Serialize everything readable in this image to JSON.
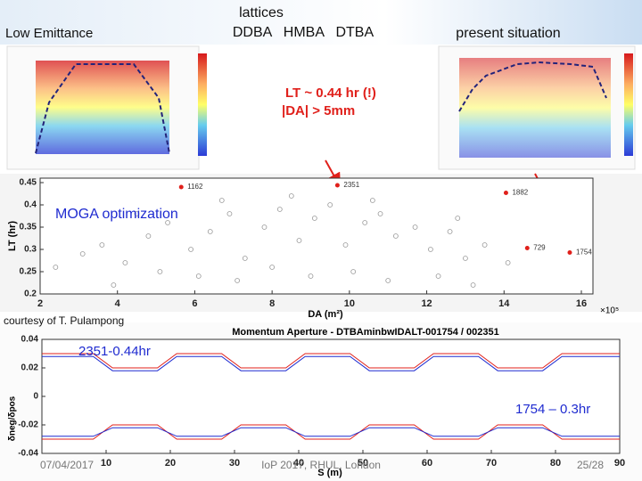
{
  "header": {
    "left": "Low Emittance",
    "center_line1": "lattices",
    "center_line2": "DDBA   HMBA   DTBA",
    "right": "present situation"
  },
  "callout": {
    "line1": "LT ~ 0.44 hr (!)",
    "line2": "|DA| > 5mm"
  },
  "credit": "courtesy of T. Pulampong",
  "footer": {
    "date": "07/04/2017",
    "venue": "IoP 2017, RHUL, London",
    "page": "25/28"
  },
  "chart_data": [
    {
      "type": "scatter",
      "annotation": "MOGA optimization",
      "xlabel": "DA (m²)",
      "x_multiplier": "×10⁵",
      "ylabel": "LT (hr)",
      "xlim": [
        2,
        16.3
      ],
      "ylim": [
        0.2,
        0.46
      ],
      "xticks": [
        2,
        4,
        6,
        8,
        10,
        12,
        14,
        16
      ],
      "yticks": [
        0.2,
        0.25,
        0.3,
        0.35,
        0.4,
        0.45
      ],
      "series": [
        {
          "color": "#9a9a9a",
          "x": [
            2.4,
            3.1,
            3.6,
            4.2,
            4.8,
            5.3,
            5.9,
            6.4,
            6.9,
            7.3,
            7.8,
            8.2,
            8.7,
            9.1,
            9.5,
            9.9,
            10.4,
            10.8,
            11.2,
            11.7,
            12.1,
            12.6,
            13.0,
            13.5,
            14.1,
            3.9,
            5.1,
            6.1,
            7.1,
            8.0,
            9.0,
            10.1,
            11.0,
            12.3,
            13.2,
            4.5,
            6.7,
            8.5,
            10.6,
            12.8
          ],
          "values": [
            0.26,
            0.29,
            0.31,
            0.27,
            0.33,
            0.36,
            0.3,
            0.34,
            0.38,
            0.28,
            0.35,
            0.39,
            0.32,
            0.37,
            0.4,
            0.31,
            0.36,
            0.38,
            0.33,
            0.35,
            0.3,
            0.34,
            0.28,
            0.31,
            0.27,
            0.22,
            0.25,
            0.24,
            0.23,
            0.26,
            0.24,
            0.25,
            0.23,
            0.24,
            0.22,
            0.38,
            0.41,
            0.42,
            0.41,
            0.37
          ]
        },
        {
          "color": "#e0201b",
          "x": [
            5.65,
            9.69,
            14.05,
            14.6,
            15.7
          ],
          "values": [
            0.44,
            0.444,
            0.427,
            0.303,
            0.293
          ],
          "labels": [
            "1162",
            "2351",
            "1882",
            "729",
            "1754"
          ]
        }
      ]
    },
    {
      "type": "line",
      "title": "Momentum Aperture - DTBAminbwIDALT-001754 / 002351",
      "xlabel": "S (m)",
      "ylabel": "δneg/δpos",
      "annotations": [
        "2351-0.44hr",
        "1754 – 0.3hr"
      ],
      "xlim": [
        0,
        90
      ],
      "ylim": [
        -0.04,
        0.04
      ],
      "xticks": [
        10,
        20,
        30,
        40,
        50,
        60,
        70,
        80,
        90
      ],
      "yticks": [
        -0.04,
        -0.02,
        0,
        0.02,
        0.04
      ],
      "x": [
        0,
        8,
        11,
        18,
        21,
        28,
        31,
        38,
        41,
        48,
        51,
        58,
        61,
        68,
        71,
        78,
        81,
        88,
        90
      ],
      "series": [
        {
          "color": "#e0201b",
          "values": [
            0.03,
            0.03,
            0.02,
            0.02,
            0.03,
            0.03,
            0.02,
            0.02,
            0.03,
            0.03,
            0.02,
            0.02,
            0.03,
            0.03,
            0.02,
            0.02,
            0.03,
            0.03,
            0.03
          ]
        },
        {
          "color": "#1f2bd0",
          "values": [
            0.028,
            0.028,
            0.018,
            0.018,
            0.028,
            0.028,
            0.018,
            0.018,
            0.028,
            0.028,
            0.018,
            0.018,
            0.028,
            0.028,
            0.018,
            0.018,
            0.028,
            0.028,
            0.028
          ]
        },
        {
          "color": "#e0201b",
          "values": [
            -0.03,
            -0.03,
            -0.02,
            -0.02,
            -0.03,
            -0.03,
            -0.02,
            -0.02,
            -0.03,
            -0.03,
            -0.02,
            -0.02,
            -0.03,
            -0.03,
            -0.02,
            -0.02,
            -0.03,
            -0.03,
            -0.03
          ]
        },
        {
          "color": "#1f2bd0",
          "values": [
            -0.028,
            -0.028,
            -0.022,
            -0.022,
            -0.028,
            -0.028,
            -0.022,
            -0.022,
            -0.028,
            -0.028,
            -0.022,
            -0.022,
            -0.028,
            -0.028,
            -0.022,
            -0.022,
            -0.028,
            -0.028,
            -0.028
          ]
        }
      ]
    }
  ]
}
